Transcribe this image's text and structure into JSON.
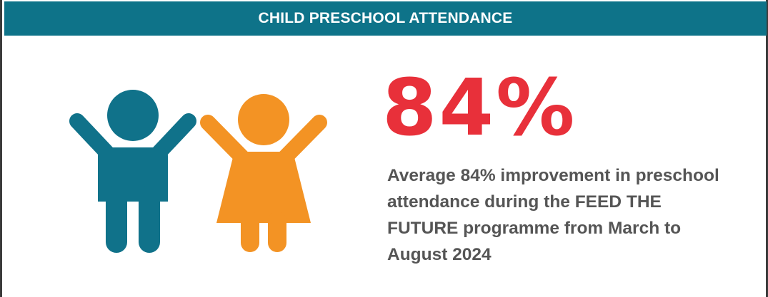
{
  "header": {
    "title": "CHILD PRESCHOOL ATTENDANCE"
  },
  "icons": {
    "boy": "boy-figure-icon",
    "girl": "girl-figure-icon"
  },
  "stat": {
    "value": "84%",
    "description": "Average 84% improvement in preschool attendance during the FEED THE FUTURE programme from March to August 2024"
  },
  "colors": {
    "header_bg": "#0e7389",
    "header_text": "#ffffff",
    "boy": "#10728a",
    "girl": "#f39324",
    "stat_value": "#e8303a",
    "description_text": "#555555"
  }
}
